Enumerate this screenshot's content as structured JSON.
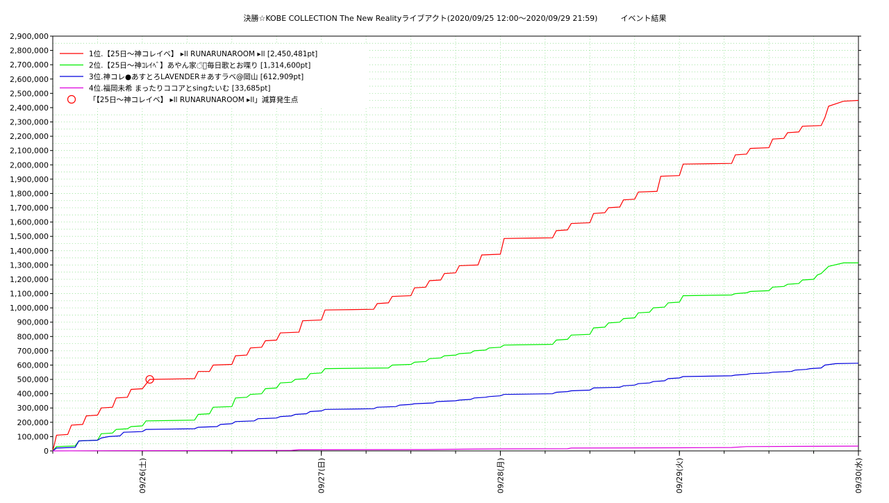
{
  "chart_data": {
    "type": "line",
    "title": "決勝☆KOBE COLLECTION The New Realityライブアクト(2020/09/25 12:00〜2020/09/29 21:59)　　　イベント結果",
    "xlabel": "",
    "ylabel": "",
    "ylim": [
      0,
      2900000
    ],
    "y_ticks": [
      0,
      100000,
      200000,
      300000,
      400000,
      500000,
      600000,
      700000,
      800000,
      900000,
      1000000,
      1100000,
      1200000,
      1300000,
      1400000,
      1500000,
      1600000,
      1700000,
      1800000,
      1900000,
      2000000,
      2100000,
      2200000,
      2300000,
      2400000,
      2500000,
      2600000,
      2700000,
      2800000,
      2900000
    ],
    "y_tick_labels": [
      "0",
      "100,000",
      "200,000",
      "300,000",
      "400,000",
      "500,000",
      "600,000",
      "700,000",
      "800,000",
      "900,000",
      "1,000,000",
      "1,100,000",
      "1,200,000",
      "1,300,000",
      "1,400,000",
      "1,500,000",
      "1,600,000",
      "1,700,000",
      "1,800,000",
      "1,900,000",
      "2,000,000",
      "2,100,000",
      "2,200,000",
      "2,300,000",
      "2,400,000",
      "2,500,000",
      "2,600,000",
      "2,700,000",
      "2,800,000",
      "2,900,000"
    ],
    "x_range_hours": [
      0,
      108
    ],
    "x_ticks": [
      12,
      36,
      60,
      84,
      108
    ],
    "x_tick_labels": [
      "09/26(土)",
      "09/27(日)",
      "09/28(月)",
      "09/29(火)",
      "09/30(水)"
    ],
    "grid": true,
    "legend_position": "top-left",
    "series": [
      {
        "name": "1位.【25日〜神コレイベ】 ▸ll RUNARUNAROOM ▸ll [2,450,481pt]",
        "color": "#ff0000",
        "points": [
          [
            0,
            0
          ],
          [
            0.5,
            110000
          ],
          [
            2,
            115000
          ],
          [
            2.5,
            180000
          ],
          [
            4,
            185000
          ],
          [
            4.5,
            245000
          ],
          [
            6,
            250000
          ],
          [
            6.5,
            300000
          ],
          [
            8,
            305000
          ],
          [
            8.5,
            370000
          ],
          [
            10,
            375000
          ],
          [
            10.5,
            430000
          ],
          [
            12,
            435000
          ],
          [
            13,
            500000
          ],
          [
            19,
            505000
          ],
          [
            19.5,
            555000
          ],
          [
            21,
            555000
          ],
          [
            21.5,
            600000
          ],
          [
            24,
            605000
          ],
          [
            24.5,
            665000
          ],
          [
            26,
            670000
          ],
          [
            26.5,
            720000
          ],
          [
            28,
            725000
          ],
          [
            28.5,
            770000
          ],
          [
            30,
            775000
          ],
          [
            30.5,
            825000
          ],
          [
            33,
            830000
          ],
          [
            33.5,
            910000
          ],
          [
            36,
            915000
          ],
          [
            36.5,
            985000
          ],
          [
            43,
            990000
          ],
          [
            43.5,
            1030000
          ],
          [
            45,
            1035000
          ],
          [
            45.5,
            1080000
          ],
          [
            48,
            1085000
          ],
          [
            48.5,
            1140000
          ],
          [
            50,
            1145000
          ],
          [
            50.5,
            1190000
          ],
          [
            52,
            1195000
          ],
          [
            52.5,
            1240000
          ],
          [
            54,
            1245000
          ],
          [
            54.5,
            1295000
          ],
          [
            57,
            1300000
          ],
          [
            57.5,
            1370000
          ],
          [
            60,
            1375000
          ],
          [
            60.5,
            1485000
          ],
          [
            67,
            1490000
          ],
          [
            67.5,
            1540000
          ],
          [
            69,
            1545000
          ],
          [
            69.5,
            1590000
          ],
          [
            72,
            1595000
          ],
          [
            72.5,
            1660000
          ],
          [
            74,
            1665000
          ],
          [
            74.5,
            1700000
          ],
          [
            76,
            1705000
          ],
          [
            76.5,
            1755000
          ],
          [
            78,
            1760000
          ],
          [
            78.5,
            1810000
          ],
          [
            81,
            1815000
          ],
          [
            81.5,
            1920000
          ],
          [
            84,
            1925000
          ],
          [
            84.5,
            2005000
          ],
          [
            91,
            2010000
          ],
          [
            91.5,
            2070000
          ],
          [
            93,
            2075000
          ],
          [
            93.5,
            2115000
          ],
          [
            96,
            2120000
          ],
          [
            96.5,
            2180000
          ],
          [
            98,
            2185000
          ],
          [
            98.5,
            2225000
          ],
          [
            100,
            2230000
          ],
          [
            100.5,
            2270000
          ],
          [
            103,
            2275000
          ],
          [
            103.5,
            2330000
          ],
          [
            104,
            2410000
          ],
          [
            106,
            2445000
          ],
          [
            108,
            2450481
          ]
        ]
      },
      {
        "name": "2位.【25日〜神ｺﾚｲﾍﾞ】あやん家◌̈⃝毎日歌とお喋り [1,314,600pt]",
        "color": "#00ee00",
        "points": [
          [
            0,
            0
          ],
          [
            0.5,
            30000
          ],
          [
            3,
            35000
          ],
          [
            3.5,
            70000
          ],
          [
            6,
            75000
          ],
          [
            6.5,
            120000
          ],
          [
            8,
            125000
          ],
          [
            8.5,
            150000
          ],
          [
            10,
            155000
          ],
          [
            10.5,
            170000
          ],
          [
            12,
            175000
          ],
          [
            12.5,
            210000
          ],
          [
            19,
            215000
          ],
          [
            19.5,
            255000
          ],
          [
            21,
            260000
          ],
          [
            21.5,
            305000
          ],
          [
            24,
            310000
          ],
          [
            24.5,
            370000
          ],
          [
            26,
            375000
          ],
          [
            26.5,
            395000
          ],
          [
            28,
            400000
          ],
          [
            28.5,
            435000
          ],
          [
            30,
            440000
          ],
          [
            30.5,
            475000
          ],
          [
            32,
            480000
          ],
          [
            32.5,
            500000
          ],
          [
            34,
            505000
          ],
          [
            34.5,
            540000
          ],
          [
            36,
            545000
          ],
          [
            36.5,
            575000
          ],
          [
            45,
            580000
          ],
          [
            45.5,
            600000
          ],
          [
            48,
            605000
          ],
          [
            48.5,
            620000
          ],
          [
            50,
            625000
          ],
          [
            50.5,
            645000
          ],
          [
            52,
            650000
          ],
          [
            52.5,
            665000
          ],
          [
            54,
            670000
          ],
          [
            54.5,
            680000
          ],
          [
            56,
            685000
          ],
          [
            56.5,
            700000
          ],
          [
            58,
            705000
          ],
          [
            58.5,
            720000
          ],
          [
            60,
            725000
          ],
          [
            60.5,
            740000
          ],
          [
            67,
            745000
          ],
          [
            67.5,
            775000
          ],
          [
            69,
            780000
          ],
          [
            69.5,
            810000
          ],
          [
            72,
            815000
          ],
          [
            72.5,
            860000
          ],
          [
            74,
            865000
          ],
          [
            74.5,
            895000
          ],
          [
            76,
            900000
          ],
          [
            76.5,
            925000
          ],
          [
            78,
            930000
          ],
          [
            78.5,
            965000
          ],
          [
            80,
            970000
          ],
          [
            80.5,
            1000000
          ],
          [
            82,
            1005000
          ],
          [
            82.5,
            1035000
          ],
          [
            84,
            1040000
          ],
          [
            84.5,
            1085000
          ],
          [
            91,
            1090000
          ],
          [
            91.5,
            1100000
          ],
          [
            93,
            1105000
          ],
          [
            93.5,
            1115000
          ],
          [
            96,
            1120000
          ],
          [
            96.5,
            1145000
          ],
          [
            98,
            1150000
          ],
          [
            98.5,
            1165000
          ],
          [
            100,
            1170000
          ],
          [
            100.5,
            1195000
          ],
          [
            102,
            1200000
          ],
          [
            102.5,
            1230000
          ],
          [
            103,
            1240000
          ],
          [
            104,
            1290000
          ],
          [
            106,
            1314600
          ],
          [
            108,
            1314600
          ]
        ]
      },
      {
        "name": "3位.神コレ●あすとろLAVENDER＃あすラベ@岡山 [612,909pt]",
        "color": "#0000dd",
        "points": [
          [
            0,
            0
          ],
          [
            0.5,
            20000
          ],
          [
            3,
            25000
          ],
          [
            3.5,
            70000
          ],
          [
            6,
            75000
          ],
          [
            6.5,
            90000
          ],
          [
            7,
            95000
          ],
          [
            7.5,
            100000
          ],
          [
            9,
            105000
          ],
          [
            9.5,
            130000
          ],
          [
            12,
            135000
          ],
          [
            12.5,
            150000
          ],
          [
            19,
            155000
          ],
          [
            19.5,
            165000
          ],
          [
            22,
            170000
          ],
          [
            22.5,
            185000
          ],
          [
            24,
            190000
          ],
          [
            24.5,
            205000
          ],
          [
            27,
            210000
          ],
          [
            27.5,
            225000
          ],
          [
            30,
            230000
          ],
          [
            30.5,
            240000
          ],
          [
            32,
            245000
          ],
          [
            32.5,
            255000
          ],
          [
            34,
            260000
          ],
          [
            34.5,
            275000
          ],
          [
            36,
            280000
          ],
          [
            36.5,
            290000
          ],
          [
            43,
            295000
          ],
          [
            43.5,
            305000
          ],
          [
            46,
            310000
          ],
          [
            46.5,
            320000
          ],
          [
            48,
            325000
          ],
          [
            48.5,
            330000
          ],
          [
            51,
            335000
          ],
          [
            51.5,
            345000
          ],
          [
            54,
            350000
          ],
          [
            54.5,
            355000
          ],
          [
            56,
            360000
          ],
          [
            56.5,
            370000
          ],
          [
            58,
            375000
          ],
          [
            58.5,
            380000
          ],
          [
            60,
            385000
          ],
          [
            60.5,
            395000
          ],
          [
            67,
            400000
          ],
          [
            67.5,
            410000
          ],
          [
            69,
            415000
          ],
          [
            69.5,
            420000
          ],
          [
            72,
            425000
          ],
          [
            72.5,
            440000
          ],
          [
            76,
            445000
          ],
          [
            76.5,
            455000
          ],
          [
            78,
            460000
          ],
          [
            78.5,
            470000
          ],
          [
            80,
            475000
          ],
          [
            80.5,
            485000
          ],
          [
            82,
            490000
          ],
          [
            82.5,
            505000
          ],
          [
            84,
            510000
          ],
          [
            84.5,
            520000
          ],
          [
            91,
            525000
          ],
          [
            91.5,
            530000
          ],
          [
            93,
            535000
          ],
          [
            93.5,
            540000
          ],
          [
            96,
            545000
          ],
          [
            96.5,
            550000
          ],
          [
            99,
            555000
          ],
          [
            99.5,
            565000
          ],
          [
            101,
            570000
          ],
          [
            101.5,
            575000
          ],
          [
            103,
            580000
          ],
          [
            103.5,
            600000
          ],
          [
            105,
            610000
          ],
          [
            108,
            612909
          ]
        ]
      },
      {
        "name": "4位.福岡未希 まったりココアとsingたいむ [33,685pt]",
        "color": "#dd00dd",
        "points": [
          [
            0,
            0
          ],
          [
            8,
            1500
          ],
          [
            24,
            3000
          ],
          [
            32,
            4000
          ],
          [
            33,
            8000
          ],
          [
            50,
            9000
          ],
          [
            55,
            12000
          ],
          [
            60,
            14000
          ],
          [
            69,
            15000
          ],
          [
            69.5,
            20000
          ],
          [
            84,
            22000
          ],
          [
            91,
            24000
          ],
          [
            93,
            30000
          ],
          [
            108,
            33685
          ]
        ]
      }
    ],
    "markers": [
      {
        "name": "「【25日〜神コレイベ】 ▸ll RUNARUNAROOM ▸ll」減算発生点",
        "color": "#ff0000",
        "x": 13,
        "y": 500000
      }
    ]
  }
}
